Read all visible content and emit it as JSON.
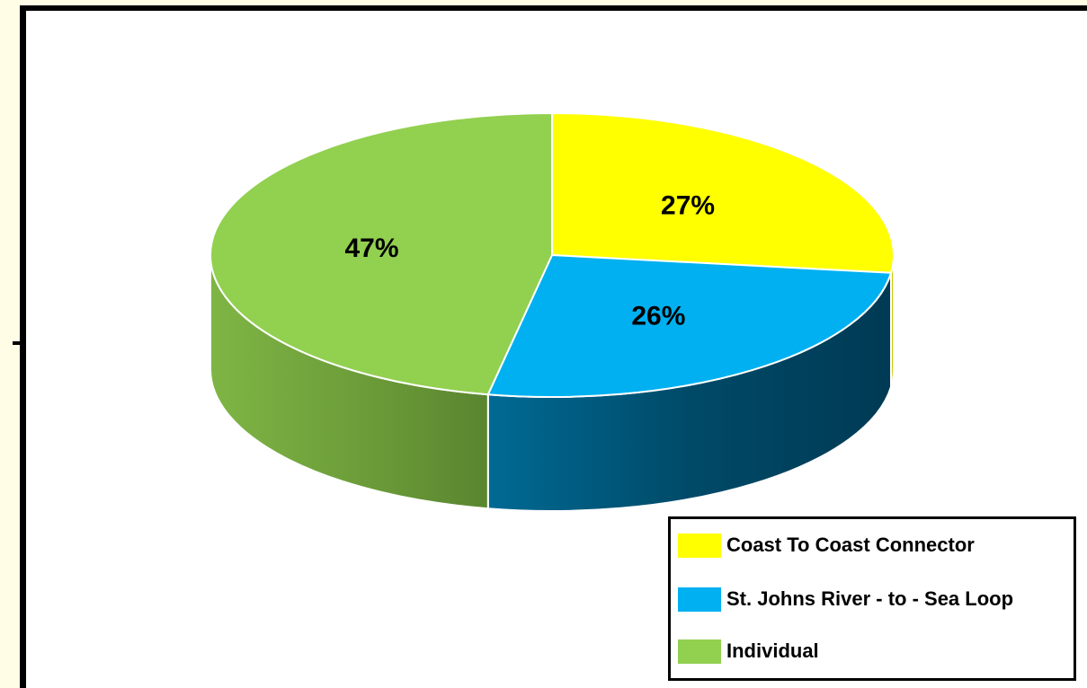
{
  "chart_data": {
    "type": "pie",
    "title": "",
    "series": [
      {
        "values": [
          27,
          26,
          47
        ],
        "value_labels": [
          "27%",
          "26%",
          "47%"
        ]
      }
    ],
    "categories": [
      "Coast To Coast Connector",
      "St. Johns River - to - Sea Loop",
      "Individual"
    ],
    "colors": [
      "#ffff00",
      "#00b0f0",
      "#92d050"
    ],
    "legend": "bottom-right",
    "style": "3d"
  }
}
